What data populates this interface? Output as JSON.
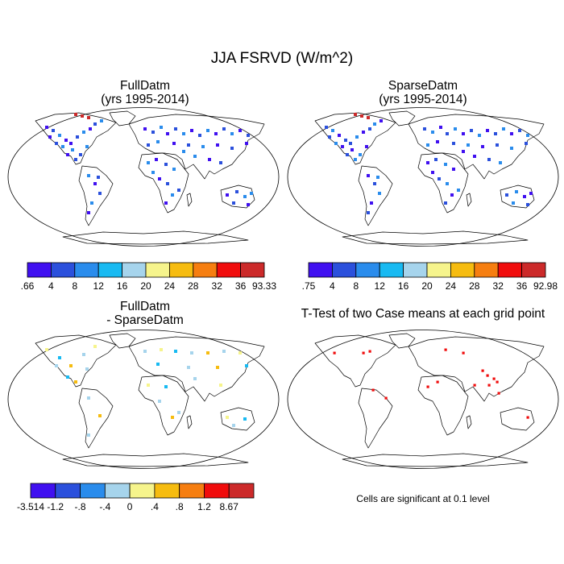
{
  "title": "JJA FSRVD (W/m^2)",
  "panels": [
    {
      "id": "full",
      "title_lines": [
        "FullDatm",
        "(yrs 1995-2014)"
      ],
      "colorbar": {
        "colors": [
          "#4010f0",
          "#2b50dc",
          "#2a8cec",
          "#18baf2",
          "#a6d4ec",
          "#f6f48c",
          "#f6bc10",
          "#f67e10",
          "#f00c0c",
          "#cc2a2a"
        ],
        "labels": [
          ".66",
          "4",
          "8",
          "12",
          "16",
          "20",
          "24",
          "28",
          "32",
          "36",
          "93.33"
        ]
      }
    },
    {
      "id": "sparse",
      "title_lines": [
        "SparseDatm",
        "(yrs 1995-2014)"
      ],
      "colorbar": {
        "colors": [
          "#4010f0",
          "#2b50dc",
          "#2a8cec",
          "#18baf2",
          "#a6d4ec",
          "#f6f48c",
          "#f6bc10",
          "#f67e10",
          "#f00c0c",
          "#cc2a2a"
        ],
        "labels": [
          ".75",
          "4",
          "8",
          "12",
          "16",
          "20",
          "24",
          "28",
          "32",
          "36",
          "92.98"
        ]
      }
    },
    {
      "id": "diff",
      "title_lines": [
        "FullDatm",
        "- SparseDatm"
      ],
      "colorbar": {
        "colors": [
          "#4010f0",
          "#2b50dc",
          "#2a8cec",
          "#a6d4ec",
          "#f6f48c",
          "#f6bc10",
          "#f67e10",
          "#f00c0c",
          "#cc2a2a"
        ],
        "labels": [
          "-3.514",
          "-1.2",
          "-.8",
          "-.4",
          "0",
          ".4",
          ".8",
          "1.2",
          "8.67"
        ]
      }
    },
    {
      "id": "ttest",
      "title_lines": [
        "T-Test of two Case means at each grid point"
      ],
      "note": "Cells are significant at 0.1 level",
      "marker_color": "#f00c0c"
    }
  ]
}
